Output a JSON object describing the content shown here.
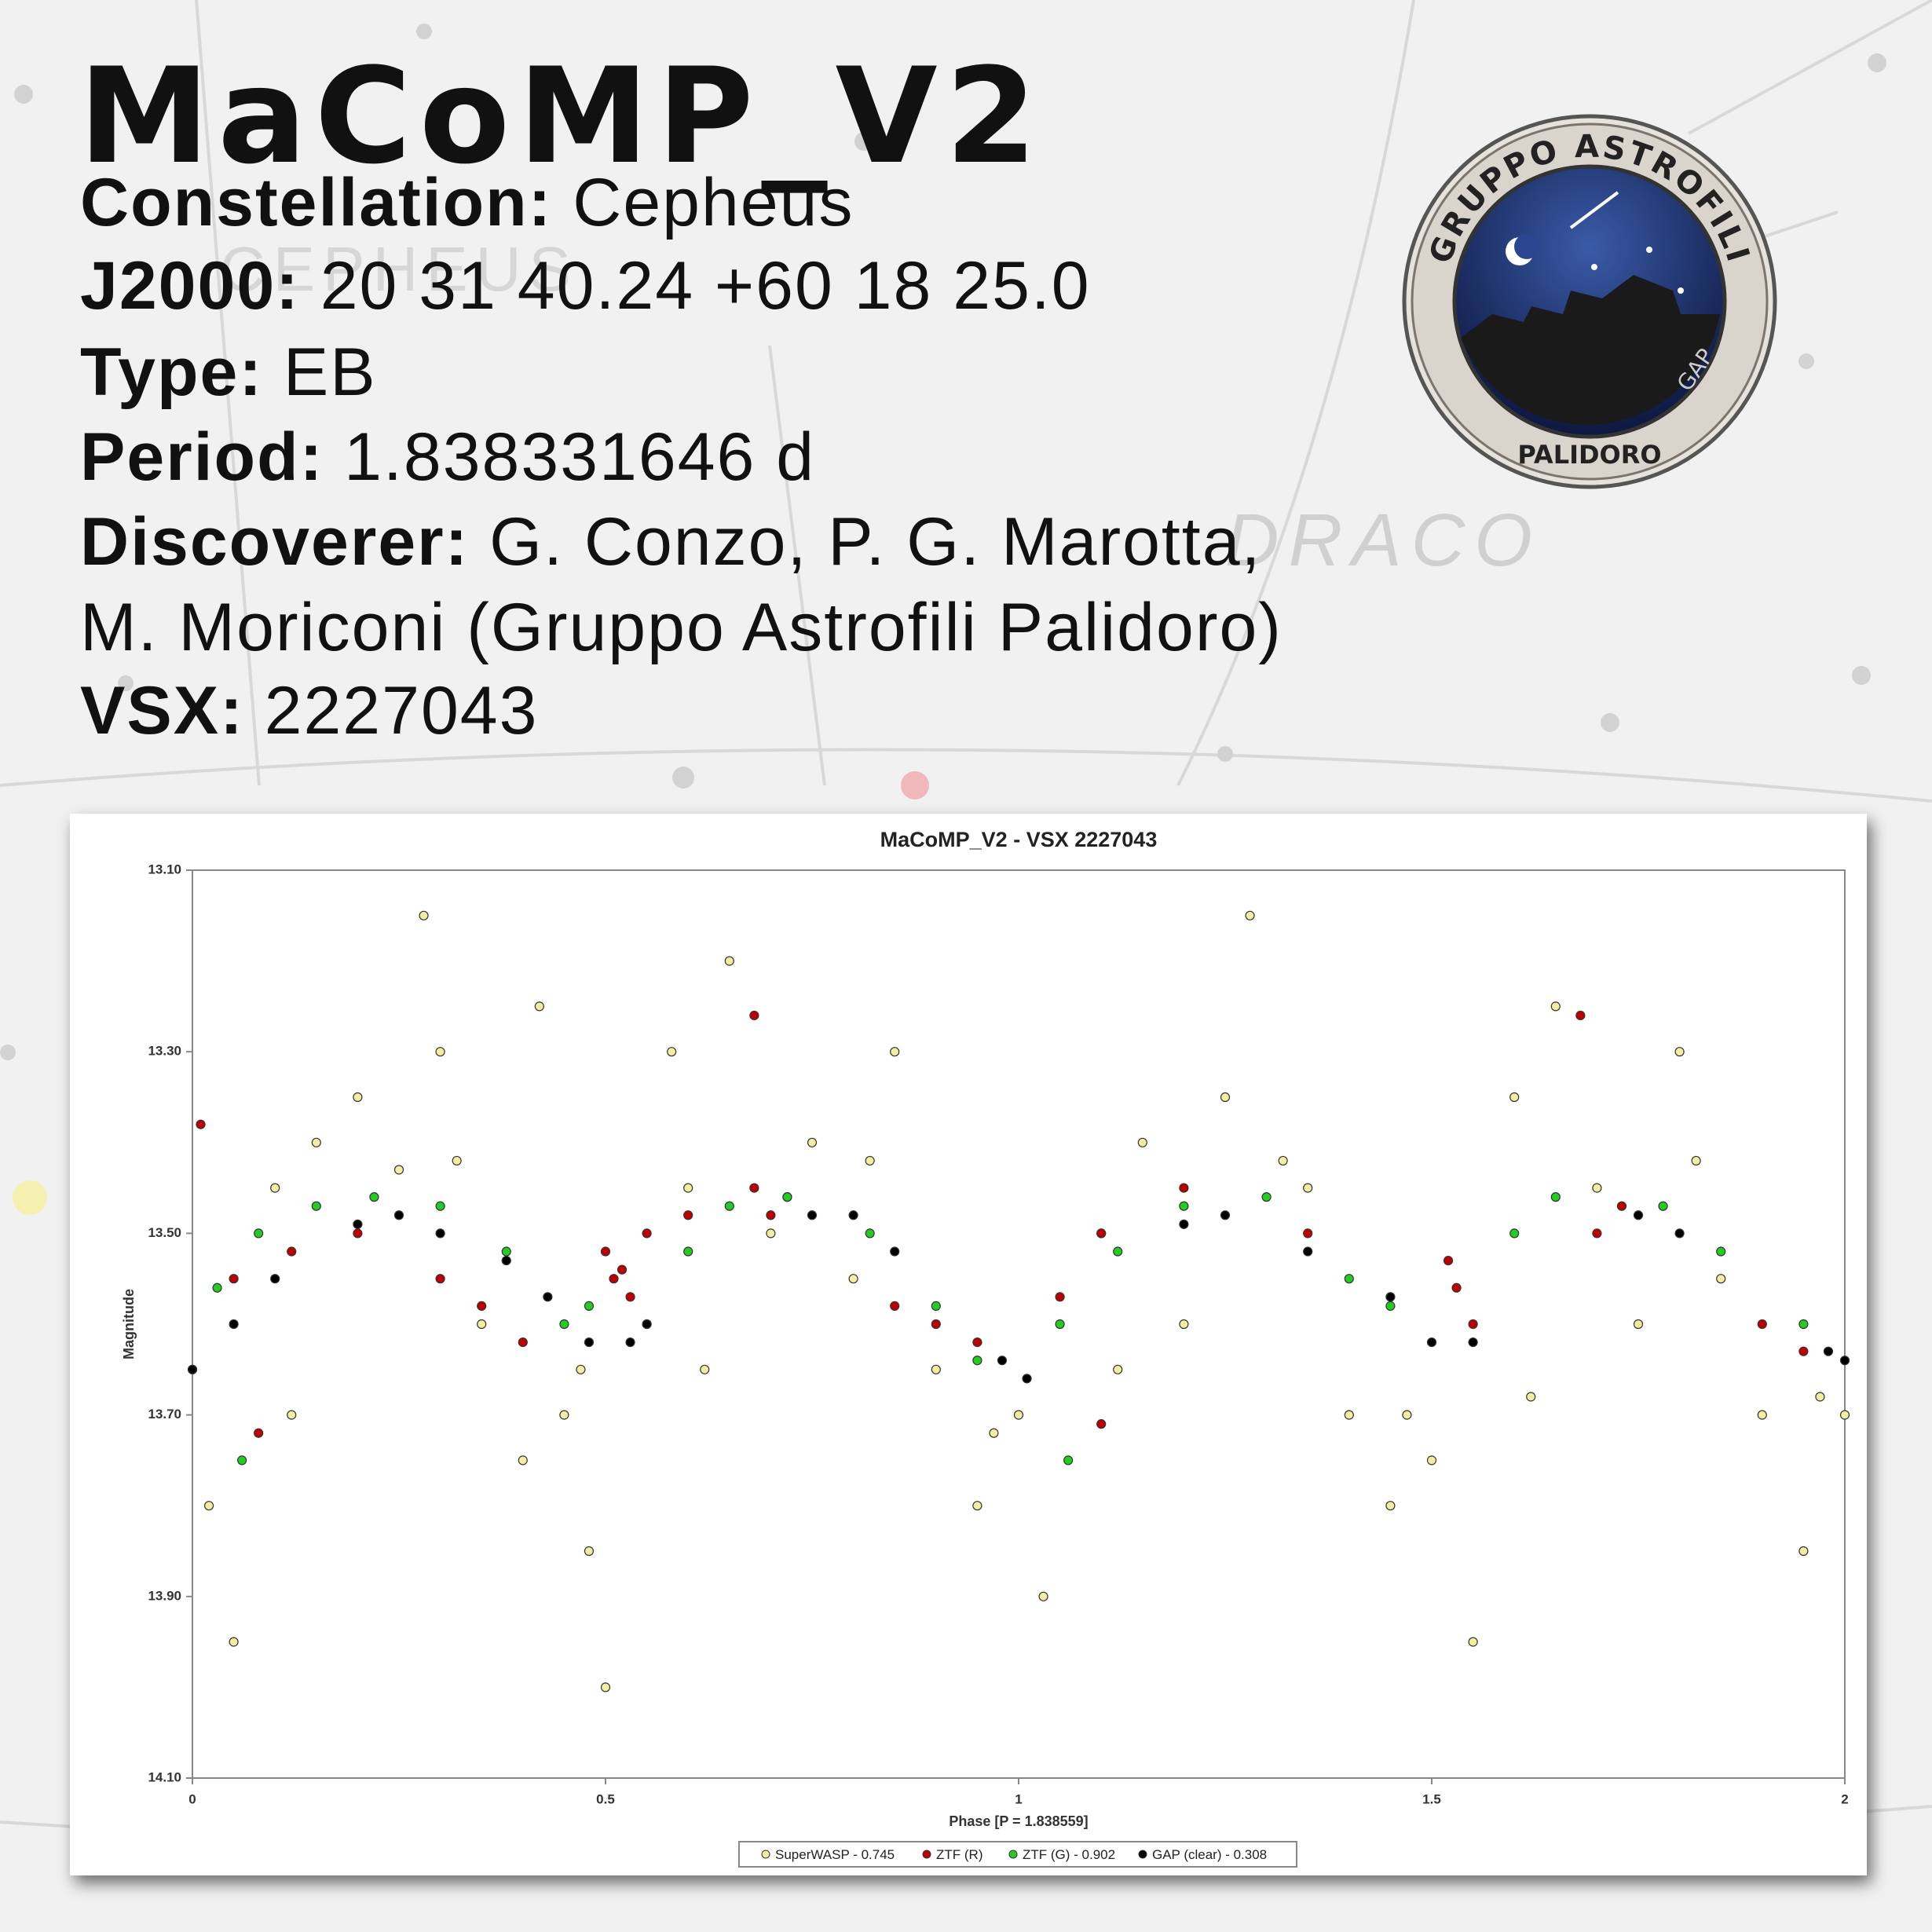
{
  "header": {
    "title": "MaCoMP_V2",
    "info": [
      {
        "label": "Constellation:",
        "value": "Cepheus"
      },
      {
        "label": "J2000:",
        "value": "20 31 40.24 +60 18 25.0"
      },
      {
        "label": "Type:",
        "value": "EB"
      },
      {
        "label": "Period:",
        "value": "1.838331646 d"
      },
      {
        "label": "Discoverer:",
        "value": "G. Conzo, P. G. Marotta,"
      },
      {
        "value": "M. Moriconi (Gruppo Astrofili Palidoro)"
      },
      {
        "label": "VSX:",
        "value": "2227043"
      }
    ],
    "background_labels": [
      "CEPHEUS",
      "DRACO"
    ]
  },
  "logo": {
    "top_text": "GRUPPO ASTROFILI",
    "bottom_text": "PALIDORO",
    "side_text": "GAP"
  },
  "chart_data": {
    "type": "scatter",
    "title": "MaCoMP_V2 - VSX 2227043",
    "x_label": "Phase [P = 1.838559]",
    "y_label": "Magnitude",
    "xlim": [
      0,
      2
    ],
    "xticks": [
      0,
      0.5,
      1,
      1.5,
      2
    ],
    "ylim": [
      14.1,
      13.1
    ],
    "yticks": [
      {
        "value": 13.1,
        "label": "13.10"
      },
      {
        "value": 13.3,
        "label": "13.30"
      },
      {
        "value": 13.5,
        "label": "13.50"
      },
      {
        "value": 13.7,
        "label": "13.70"
      },
      {
        "value": 13.9,
        "label": "13.90"
      },
      {
        "value": 14.1,
        "label": "14.10"
      }
    ],
    "grid": false,
    "legend": "bottom",
    "series": [
      {
        "name": "SuperWASP - 0.745",
        "color": "#f2eea0",
        "x": [
          0,
          0.02,
          0.05,
          0.1,
          0.15,
          0.2,
          0.25,
          0.28,
          0.3,
          0.35,
          0.4,
          0.42,
          0.45,
          0.48,
          0.5,
          0.55,
          0.58,
          0.6,
          0.65,
          0.7,
          0.75,
          0.8,
          0.85,
          0.9,
          0.95,
          1.0,
          1.03,
          1.1,
          1.15,
          1.2,
          1.25,
          1.28,
          1.35,
          1.4,
          1.45,
          1.5,
          1.55,
          1.6,
          1.65,
          1.7,
          1.75,
          1.8,
          1.85,
          1.9,
          1.95,
          2.0,
          0.12,
          0.62,
          1.12,
          1.62,
          0.32,
          0.82,
          1.32,
          1.82,
          0.47,
          0.97,
          1.47,
          1.97
        ],
        "values": [
          13.65,
          13.8,
          13.95,
          13.45,
          13.4,
          13.35,
          13.43,
          13.15,
          13.3,
          13.6,
          13.75,
          13.25,
          13.7,
          13.85,
          14.0,
          13.6,
          13.3,
          13.45,
          13.2,
          13.5,
          13.4,
          13.55,
          13.3,
          13.65,
          13.8,
          13.7,
          13.9,
          13.5,
          13.4,
          13.6,
          13.35,
          13.15,
          13.45,
          13.7,
          13.8,
          13.75,
          13.95,
          13.35,
          13.25,
          13.45,
          13.6,
          13.3,
          13.55,
          13.7,
          13.85,
          13.7,
          13.7,
          13.65,
          13.65,
          13.68,
          13.42,
          13.42,
          13.42,
          13.42,
          13.65,
          13.72,
          13.7,
          13.68
        ]
      },
      {
        "name": "ZTF (R)",
        "color": "#c00000",
        "x": [
          0.01,
          0.05,
          0.12,
          0.2,
          0.3,
          0.35,
          0.4,
          0.5,
          0.51,
          0.52,
          0.53,
          0.55,
          0.6,
          0.68,
          0.7,
          0.72,
          0.85,
          0.9,
          0.95,
          1.05,
          1.1,
          1.2,
          1.35,
          1.52,
          1.53,
          1.55,
          1.7,
          1.73,
          1.9,
          1.95,
          0.68,
          1.68,
          0.08,
          1.1
        ],
        "values": [
          13.38,
          13.55,
          13.52,
          13.5,
          13.55,
          13.58,
          13.62,
          13.52,
          13.55,
          13.54,
          13.57,
          13.5,
          13.48,
          13.45,
          13.48,
          13.46,
          13.58,
          13.6,
          13.62,
          13.57,
          13.5,
          13.45,
          13.5,
          13.53,
          13.56,
          13.6,
          13.5,
          13.47,
          13.6,
          13.63,
          13.26,
          13.26,
          13.72,
          13.71
        ]
      },
      {
        "name": "ZTF (G) - 0.902",
        "color": "#22cc22",
        "x": [
          0.03,
          0.08,
          0.15,
          0.22,
          0.3,
          0.38,
          0.45,
          0.48,
          0.6,
          0.65,
          0.72,
          0.82,
          0.9,
          0.95,
          1.05,
          1.12,
          1.2,
          1.3,
          1.4,
          1.45,
          1.6,
          1.65,
          1.78,
          1.85,
          1.95,
          0.06,
          1.06
        ],
        "values": [
          13.56,
          13.5,
          13.47,
          13.46,
          13.47,
          13.52,
          13.6,
          13.58,
          13.52,
          13.47,
          13.46,
          13.5,
          13.58,
          13.64,
          13.6,
          13.52,
          13.47,
          13.46,
          13.55,
          13.58,
          13.5,
          13.46,
          13.47,
          13.52,
          13.6,
          13.75,
          13.75
        ]
      },
      {
        "name": "GAP (clear) - 0.308",
        "color": "#000000",
        "x": [
          0,
          0.05,
          0.1,
          0.2,
          0.25,
          0.3,
          0.38,
          0.43,
          0.48,
          0.53,
          0.55,
          0.75,
          0.8,
          0.85,
          0.98,
          1.01,
          1.2,
          1.25,
          1.35,
          1.45,
          1.5,
          1.55,
          1.75,
          1.8,
          1.98,
          2.0
        ],
        "values": [
          13.65,
          13.6,
          13.55,
          13.49,
          13.48,
          13.5,
          13.53,
          13.57,
          13.62,
          13.62,
          13.6,
          13.48,
          13.48,
          13.52,
          13.64,
          13.66,
          13.49,
          13.48,
          13.52,
          13.57,
          13.62,
          13.62,
          13.48,
          13.5,
          13.63,
          13.64
        ]
      }
    ]
  }
}
